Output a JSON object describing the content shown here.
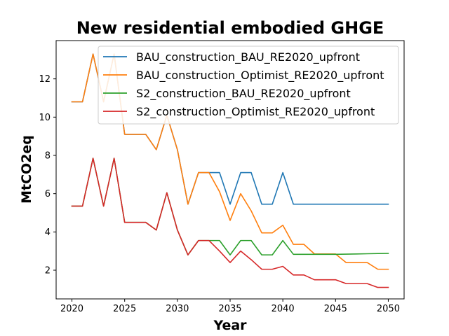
{
  "chart_data": {
    "type": "line",
    "title": "New residential embodied GHGE",
    "xlabel": "Year",
    "ylabel": "MtCO2eq",
    "xlim": [
      2018.5,
      2051.5
    ],
    "ylim": [
      0.5,
      14.0
    ],
    "xticks": [
      2020,
      2025,
      2030,
      2035,
      2040,
      2045,
      2050
    ],
    "yticks": [
      2,
      4,
      6,
      8,
      10,
      12
    ],
    "grid": false,
    "legend_position": "top-right",
    "x": [
      2020,
      2021,
      2022,
      2023,
      2024,
      2025,
      2026,
      2027,
      2028,
      2029,
      2030,
      2031,
      2032,
      2033,
      2034,
      2035,
      2036,
      2037,
      2038,
      2039,
      2040,
      2041,
      2042,
      2043,
      2044,
      2045,
      2046,
      2047,
      2048,
      2049,
      2050
    ],
    "series": [
      {
        "name": "BAU_construction_BAU_RE2020_upfront",
        "color": "#1f77b4",
        "values": [
          10.8,
          10.8,
          13.3,
          10.8,
          13.3,
          9.1,
          9.1,
          9.1,
          8.3,
          10.1,
          8.3,
          5.45,
          7.1,
          7.1,
          7.1,
          5.45,
          7.1,
          7.1,
          5.45,
          5.45,
          7.1,
          5.45,
          5.45,
          5.45,
          5.45,
          5.45,
          5.45,
          5.45,
          5.45,
          5.45,
          5.45
        ]
      },
      {
        "name": "BAU_construction_Optimist_RE2020_upfront",
        "color": "#ff7f0e",
        "values": [
          10.8,
          10.8,
          13.3,
          10.8,
          13.3,
          9.1,
          9.1,
          9.1,
          8.3,
          10.1,
          8.3,
          5.45,
          7.1,
          7.1,
          6.1,
          4.6,
          6.0,
          5.1,
          3.95,
          3.95,
          4.35,
          3.35,
          3.35,
          2.85,
          2.85,
          2.85,
          2.4,
          2.4,
          2.4,
          2.05,
          2.05
        ]
      },
      {
        "name": "S2_construction_BAU_RE2020_upfront",
        "color": "#2ca02c",
        "values": [
          5.35,
          5.35,
          7.85,
          5.35,
          7.85,
          4.5,
          4.5,
          4.5,
          4.1,
          6.05,
          4.1,
          2.8,
          3.55,
          3.55,
          3.55,
          2.8,
          3.55,
          3.55,
          2.8,
          2.8,
          3.55,
          2.83,
          2.83,
          2.83,
          2.83,
          2.83,
          2.84,
          2.85,
          2.86,
          2.87,
          2.88
        ]
      },
      {
        "name": "S2_construction_Optimist_RE2020_upfront",
        "color": "#d62728",
        "values": [
          5.35,
          5.35,
          7.85,
          5.35,
          7.85,
          4.5,
          4.5,
          4.5,
          4.1,
          6.05,
          4.1,
          2.8,
          3.55,
          3.55,
          3.0,
          2.4,
          3.0,
          2.55,
          2.05,
          2.05,
          2.2,
          1.75,
          1.75,
          1.5,
          1.5,
          1.5,
          1.3,
          1.3,
          1.3,
          1.1,
          1.1
        ]
      }
    ]
  }
}
